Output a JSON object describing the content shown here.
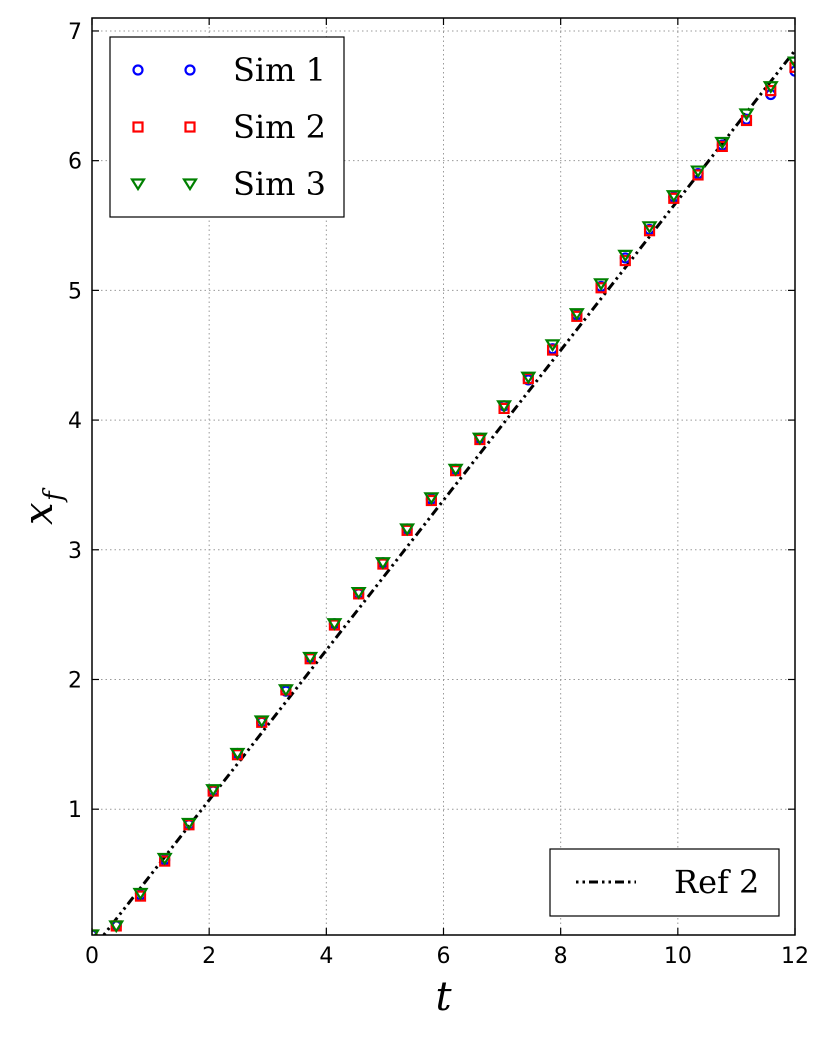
{
  "chart_data": {
    "type": "scatter",
    "xlabel": "t",
    "ylabel": "x",
    "ylabel_sub": "f",
    "xlim": [
      0,
      12
    ],
    "ylim": [
      0.03,
      7.1
    ],
    "xticks": [
      0,
      2,
      4,
      6,
      8,
      10,
      12
    ],
    "yticks": [
      1,
      2,
      3,
      4,
      5,
      6,
      7
    ],
    "xtick_labels": [
      "0",
      "2",
      "4",
      "6",
      "8",
      "10",
      "12"
    ],
    "ytick_labels": [
      "1",
      "2",
      "3",
      "4",
      "5",
      "6",
      "7"
    ],
    "grid": true,
    "legend_main_position": "top-left",
    "legend_ref_position": "bottom-right",
    "series": [
      {
        "name": "Sim 1",
        "marker": "circle",
        "color": "#0000ff",
        "x": [
          0,
          0.414,
          0.828,
          1.241,
          1.655,
          2.069,
          2.483,
          2.897,
          3.31,
          3.724,
          4.138,
          4.552,
          4.966,
          5.379,
          5.793,
          6.207,
          6.621,
          7.034,
          7.448,
          7.862,
          8.276,
          8.69,
          9.103,
          9.517,
          9.931,
          10.345,
          10.759,
          11.172,
          11.586,
          12
        ],
        "y": [
          0.03,
          0.1,
          0.34,
          0.61,
          0.88,
          1.14,
          1.43,
          1.67,
          1.91,
          2.17,
          2.43,
          2.66,
          2.9,
          3.16,
          3.39,
          3.62,
          3.86,
          4.11,
          4.31,
          4.55,
          4.81,
          5.03,
          5.25,
          5.47,
          5.72,
          5.9,
          6.12,
          6.32,
          6.51,
          6.69
        ]
      },
      {
        "name": "Sim 2",
        "marker": "square",
        "color": "#ff0000",
        "x": [
          0,
          0.414,
          0.828,
          1.241,
          1.655,
          2.069,
          2.483,
          2.897,
          3.31,
          3.724,
          4.138,
          4.552,
          4.966,
          5.379,
          5.793,
          6.207,
          6.621,
          7.034,
          7.448,
          7.862,
          8.276,
          8.69,
          9.103,
          9.517,
          9.931,
          10.345,
          10.759,
          11.172,
          11.586,
          12
        ],
        "y": [
          0.03,
          0.1,
          0.33,
          0.6,
          0.88,
          1.14,
          1.42,
          1.67,
          1.92,
          2.16,
          2.42,
          2.66,
          2.89,
          3.15,
          3.38,
          3.61,
          3.85,
          4.09,
          4.32,
          4.54,
          4.8,
          5.02,
          5.23,
          5.46,
          5.71,
          5.89,
          6.11,
          6.31,
          6.54,
          6.72
        ]
      },
      {
        "name": "Sim 3",
        "marker": "triangle-down",
        "color": "#008000",
        "x": [
          0,
          0.414,
          0.828,
          1.241,
          1.655,
          2.069,
          2.483,
          2.897,
          3.31,
          3.724,
          4.138,
          4.552,
          4.966,
          5.379,
          5.793,
          6.207,
          6.621,
          7.034,
          7.448,
          7.862,
          8.276,
          8.69,
          9.103,
          9.517,
          9.931,
          10.345,
          10.759,
          11.172,
          11.586,
          12
        ],
        "y": [
          0.03,
          0.1,
          0.35,
          0.62,
          0.89,
          1.15,
          1.43,
          1.68,
          1.92,
          2.17,
          2.43,
          2.67,
          2.9,
          3.16,
          3.4,
          3.62,
          3.86,
          4.11,
          4.33,
          4.58,
          4.82,
          5.05,
          5.27,
          5.49,
          5.73,
          5.92,
          6.14,
          6.36,
          6.57,
          6.76
        ]
      },
      {
        "name": "Ref 2",
        "line_style": "dash-dot-dot",
        "color": "#000000",
        "x": [
          0.2,
          12
        ],
        "y": [
          0.03,
          6.85
        ]
      }
    ]
  }
}
